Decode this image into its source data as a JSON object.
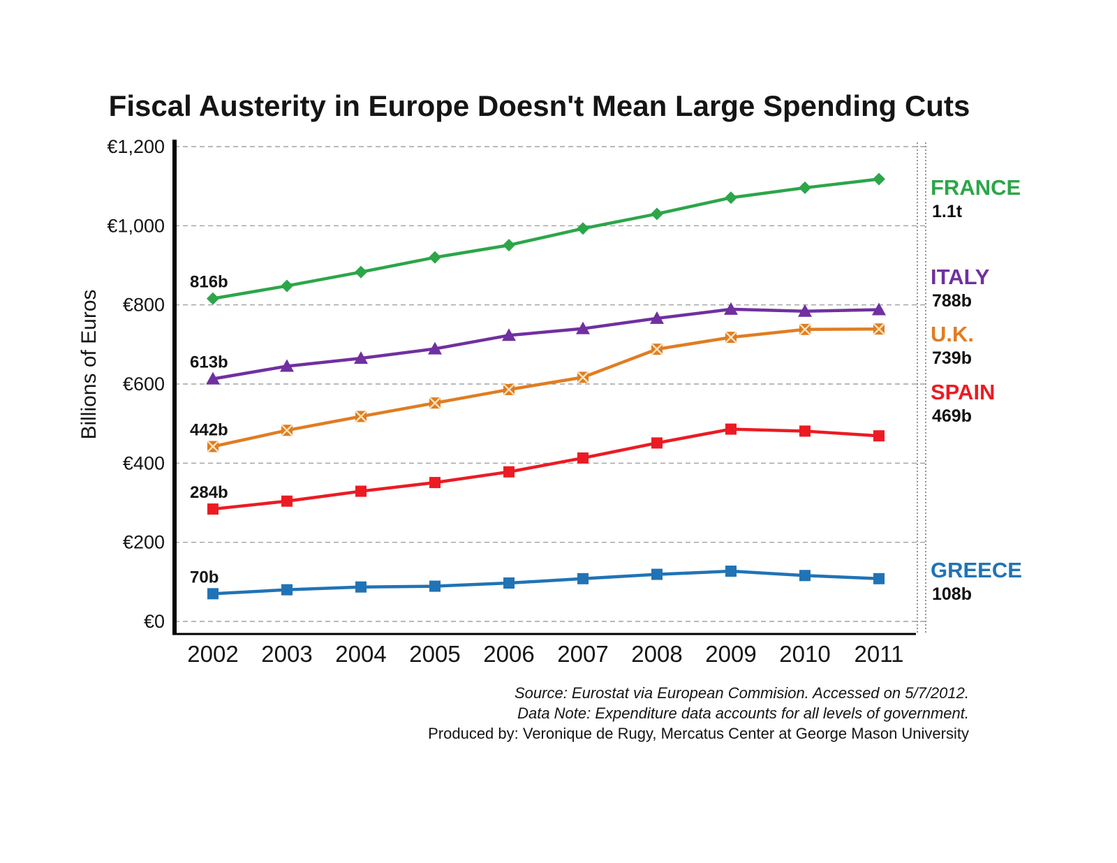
{
  "chart_data": {
    "type": "line",
    "title": "Fiscal Austerity in Europe Doesn't Mean Large Spending Cuts",
    "ylabel": "Billions of Euros",
    "xlabel": "",
    "ylim": [
      0,
      1200
    ],
    "grid": "horizontal-dashed",
    "legend_position": "right",
    "x": [
      2002,
      2003,
      2004,
      2005,
      2006,
      2007,
      2008,
      2009,
      2010,
      2011
    ],
    "y_ticks": [
      {
        "value": 0,
        "label": "€0"
      },
      {
        "value": 200,
        "label": "€200"
      },
      {
        "value": 400,
        "label": "€400"
      },
      {
        "value": 600,
        "label": "€600"
      },
      {
        "value": 800,
        "label": "€800"
      },
      {
        "value": 1000,
        "label": "€1,000"
      },
      {
        "value": 1200,
        "label": "€1,200"
      }
    ],
    "series": [
      {
        "name": "FRANCE",
        "color": "#2CA649",
        "marker": "diamond",
        "start_label": "816b",
        "end_label": "1.1t",
        "values": [
          816,
          848,
          883,
          920,
          951,
          993,
          1030,
          1071,
          1096,
          1118
        ]
      },
      {
        "name": "ITALY",
        "color": "#7030A0",
        "marker": "triangle",
        "start_label": "613b",
        "end_label": "788b",
        "values": [
          613,
          645,
          665,
          689,
          723,
          740,
          766,
          789,
          784,
          788
        ]
      },
      {
        "name": "U.K.",
        "color": "#E07D22",
        "marker": "square-x",
        "start_label": "442b",
        "end_label": "739b",
        "values": [
          442,
          483,
          518,
          552,
          586,
          617,
          688,
          718,
          738,
          739
        ]
      },
      {
        "name": "SPAIN",
        "color": "#EC1B23",
        "marker": "square",
        "start_label": "284b",
        "end_label": "469b",
        "values": [
          284,
          304,
          329,
          351,
          378,
          413,
          451,
          486,
          481,
          469
        ]
      },
      {
        "name": "GREECE",
        "color": "#2173B5",
        "marker": "square",
        "start_label": "70b",
        "end_label": "108b",
        "values": [
          70,
          80,
          87,
          89,
          97,
          108,
          119,
          127,
          116,
          108
        ]
      }
    ]
  },
  "footer": {
    "line1": "Source: Eurostat via European Commision. Accessed on 5/7/2012.",
    "line2": "Data Note: Expenditure data accounts for all levels of government.",
    "line3": "Produced by: Veronique de Rugy, Mercatus Center at George Mason University"
  }
}
